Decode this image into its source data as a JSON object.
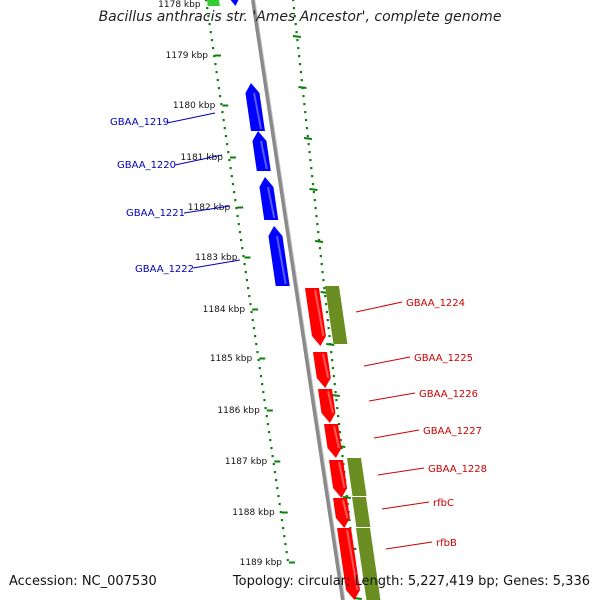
{
  "title": "Bacillus anthracis str. 'Ames Ancestor', complete genome",
  "accession_label": "Accession: NC_007530",
  "topology_label": "Topology: circular; Length: 5,227,419 bp; Genes: 5,336",
  "colors": {
    "forward_gene": "#0000ff",
    "reverse_gene": "#ff0000",
    "reverse_cds": "#6b8e23",
    "green_feature": "#33cc33",
    "backbone": "#8a8a8a",
    "tick_dots": "#0a7f0a",
    "forward_label": "#0000bb",
    "reverse_label": "#cc0000"
  },
  "kbp_ticks": [
    "1178 kbp",
    "1179 kbp",
    "1180 kbp",
    "1181 kbp",
    "1182 kbp",
    "1183 kbp",
    "1184 kbp",
    "1185 kbp",
    "1186 kbp",
    "1187 kbp",
    "1188 kbp",
    "1189 kbp"
  ],
  "forward_genes": [
    {
      "label": "GBAA_1219"
    },
    {
      "label": "GBAA_1220"
    },
    {
      "label": "GBAA_1221"
    },
    {
      "label": "GBAA_1222"
    }
  ],
  "reverse_genes": [
    {
      "label": "GBAA_1224"
    },
    {
      "label": "GBAA_1225"
    },
    {
      "label": "GBAA_1226"
    },
    {
      "label": "GBAA_1227"
    },
    {
      "label": "GBAA_1228"
    },
    {
      "label": "rfbC"
    },
    {
      "label": "rfbB"
    }
  ]
}
